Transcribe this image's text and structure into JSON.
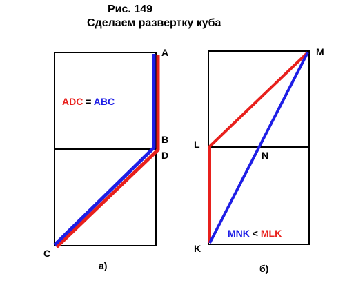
{
  "figure": {
    "title": "Рис. 149",
    "subtitle": "Сделаем развертку куба"
  },
  "colors": {
    "red": "#e8201c",
    "blue": "#1e1ee6",
    "black": "#000000"
  },
  "panel_a": {
    "caption": "а)",
    "points": {
      "A": "A",
      "B": "B",
      "D": "D",
      "C": "C"
    },
    "equation": {
      "left": "ADC",
      "op": "=",
      "right": "ABC"
    }
  },
  "panel_b": {
    "caption": "б)",
    "points": {
      "M": "M",
      "L": "L",
      "N": "N",
      "K": "K"
    },
    "inequality": {
      "left": "MNK",
      "op": "<",
      "right": "MLK"
    }
  }
}
